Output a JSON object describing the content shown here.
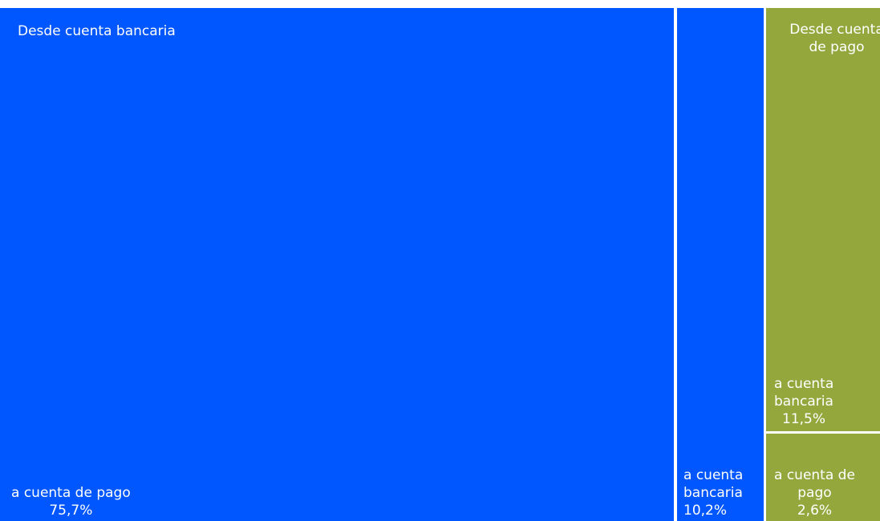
{
  "chart_data": {
    "type": "treemap",
    "colors": {
      "Desde cuenta bancaria": "#0057FF",
      "Desde cuenta\nde pago": "#93A73D"
    },
    "groups": [
      {
        "name": "Desde cuenta bancaria",
        "items": [
          {
            "label": "a cuenta de pago",
            "value": 75.7,
            "value_text": "75,7%"
          },
          {
            "label": "a cuenta\nbancaria",
            "value": 10.2,
            "value_text": "10,2%"
          }
        ]
      },
      {
        "name": "Desde cuenta\nde pago",
        "items": [
          {
            "label": "a cuenta\nbancaria",
            "value": 11.5,
            "value_text": "11,5%"
          },
          {
            "label": "a cuenta de\npago",
            "value": 2.6,
            "value_text": "2,6%"
          }
        ]
      }
    ]
  }
}
